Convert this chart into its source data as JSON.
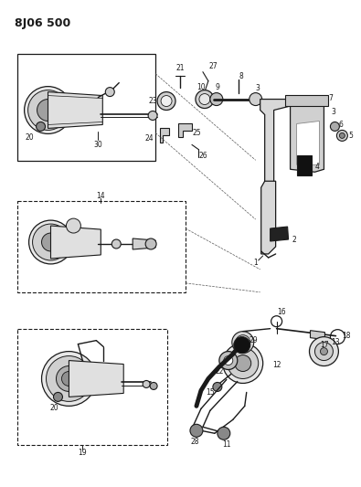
{
  "title": "8J06 500",
  "bg_color": "#ffffff",
  "line_color": "#1a1a1a",
  "text_color": "#1a1a1a",
  "fig_width": 3.95,
  "fig_height": 5.33,
  "dpi": 100
}
